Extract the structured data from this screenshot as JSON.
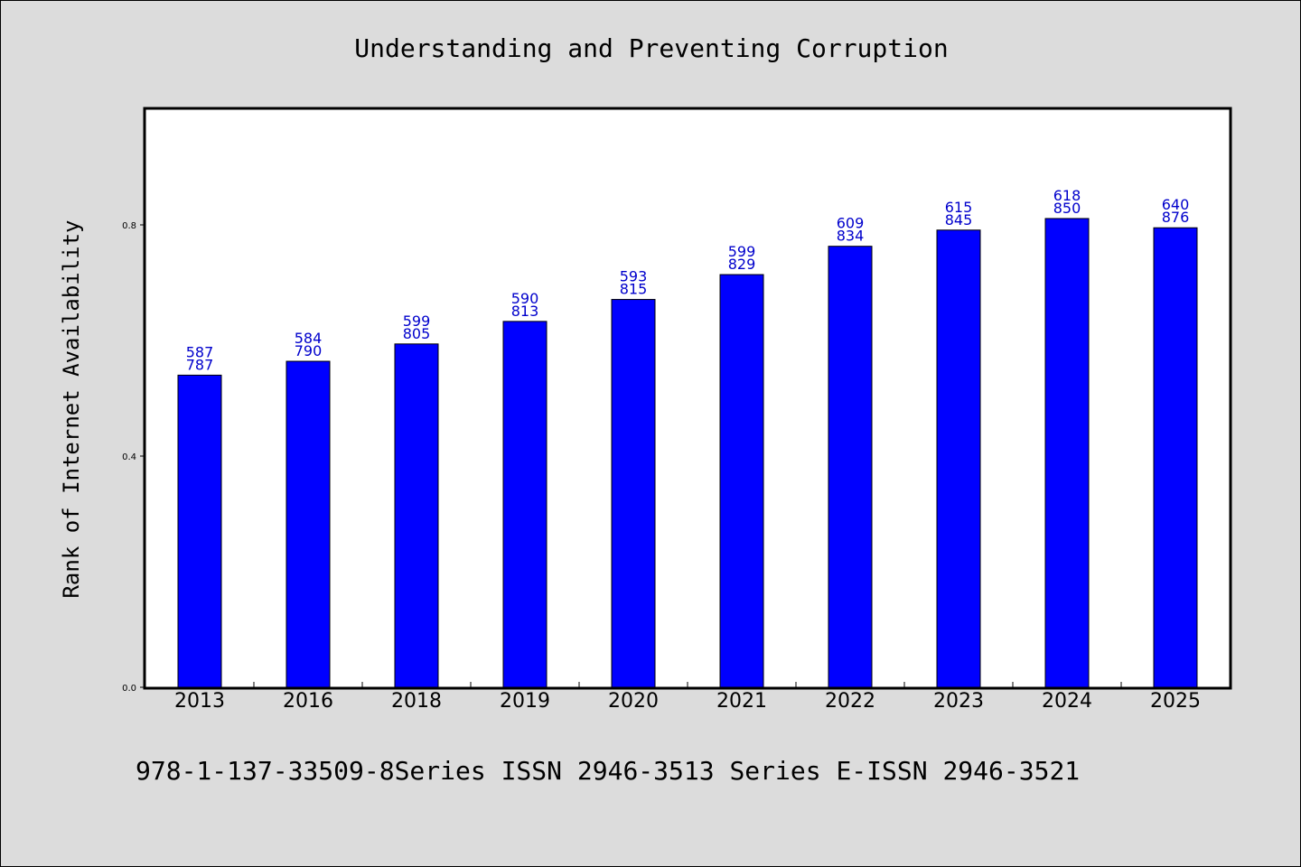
{
  "chart_data": {
    "type": "bar",
    "title": "Understanding and Preventing Corruption",
    "ylabel": "Rank of Internet Availability",
    "xlabel": "",
    "categories": [
      "2013",
      "2016",
      "2018",
      "2019",
      "2020",
      "2021",
      "2022",
      "2023",
      "2024",
      "2025"
    ],
    "values": [
      0.54,
      0.564,
      0.594,
      0.633,
      0.671,
      0.714,
      0.763,
      0.791,
      0.811,
      0.795
    ],
    "bar_labels_top": [
      "587",
      "584",
      "599",
      "590",
      "593",
      "599",
      "609",
      "615",
      "618",
      "640"
    ],
    "bar_labels_bottom": [
      "787",
      "790",
      "805",
      "813",
      "815",
      "829",
      "834",
      "845",
      "850",
      "876"
    ],
    "ylim": [
      0.0,
      1.0
    ],
    "yticks": [
      0.0,
      0.4,
      0.8
    ],
    "ytick_labels": [
      "0.0",
      "0.4",
      "0.8"
    ],
    "bar_color": "#0000ff",
    "label_color": "#0000cc",
    "grid": false,
    "legend": "none"
  },
  "footer": {
    "text": "978-1-137-33509-8Series ISSN 2946-3513 Series E-ISSN 2946-3521"
  }
}
